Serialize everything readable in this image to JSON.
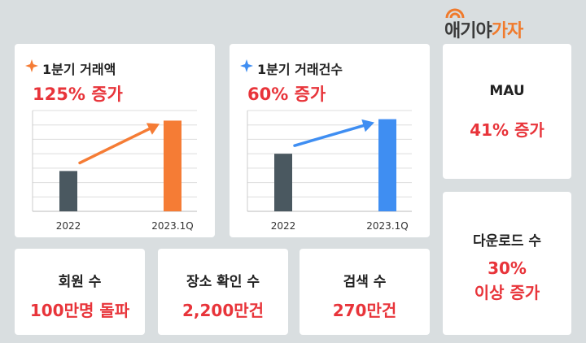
{
  "logo": {
    "part1": "애기야",
    "part2": "가자"
  },
  "charts": [
    {
      "title": "1분기 거래액",
      "subtitle": "125% 증가",
      "accent": "#f57c35",
      "base": "#4a5860"
    },
    {
      "title": "1분기 거래건수",
      "subtitle": "60% 증가",
      "accent": "#3f8ef2",
      "base": "#4a5860"
    }
  ],
  "chart_data": [
    {
      "type": "bar",
      "title": "1분기 거래액",
      "categories": [
        "2022",
        "2023.1Q"
      ],
      "values": [
        1,
        2.25
      ],
      "ylim": [
        0,
        2.5
      ],
      "annotation": "125% 증가",
      "grid": true
    },
    {
      "type": "bar",
      "title": "1분기 거래건수",
      "categories": [
        "2022",
        "2023.1Q"
      ],
      "values": [
        1,
        1.6
      ],
      "ylim": [
        0,
        1.75
      ],
      "annotation": "60% 증가",
      "grid": true
    }
  ],
  "stats": {
    "mau": {
      "label": "MAU",
      "value": "41% 증가"
    },
    "downloads": {
      "label": "다운로드 수",
      "value_line1": "30%",
      "value_line2": "이상 증가"
    },
    "members": {
      "label": "회원 수",
      "value": "100만명 돌파"
    },
    "place_checks": {
      "label": "장소 확인 수",
      "value": "2,200만건"
    },
    "searches": {
      "label": "검색 수",
      "value": "270만건"
    }
  }
}
